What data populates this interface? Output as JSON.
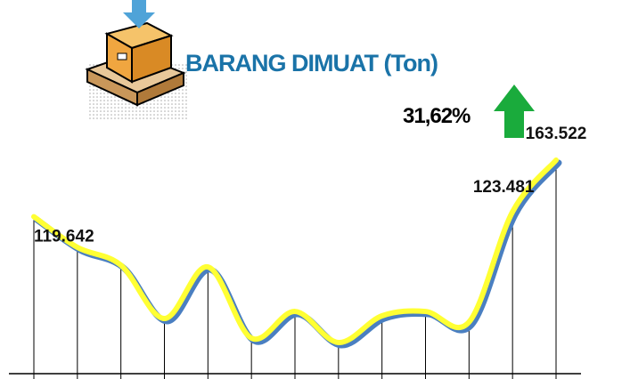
{
  "chart_data": {
    "type": "line",
    "title": "BARANG DIMUAT (Ton)",
    "annotation": "31,62%",
    "series": [
      {
        "name": null,
        "color": "#ffff33",
        "values": [
          119642,
          95900,
          82100,
          40700,
          80700,
          25500,
          46200,
          22100,
          42800,
          46200,
          38000,
          123481,
          163522
        ],
        "value_labels": [
          "119.642",
          null,
          null,
          null,
          null,
          null,
          null,
          null,
          null,
          null,
          null,
          "123.481",
          "163.522"
        ]
      }
    ]
  }
}
